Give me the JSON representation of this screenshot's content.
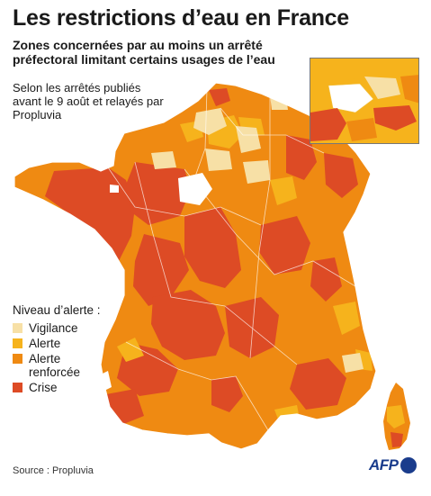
{
  "title": "Les restrictions d’eau en France",
  "subtitle": "Zones concernées par au moins un arrêté préfectoral limitant certains usages de l’eau",
  "note": "Selon les arrêtés publiés avant le 9 août et relayés par Propluvia",
  "legend": {
    "title": "Niveau d’alerte :",
    "items": [
      {
        "label": "Vigilance",
        "color": "#f7e0a6"
      },
      {
        "label": "Alerte",
        "color": "#f6b31c"
      },
      {
        "label": "Alerte renforcée",
        "color": "#ef8a12"
      },
      {
        "label": "Crise",
        "color": "#dd4b25"
      }
    ]
  },
  "source": "Source : Propluvia",
  "logo": "AFP",
  "colors": {
    "border": "#ffffff",
    "water": "#ffffff"
  }
}
